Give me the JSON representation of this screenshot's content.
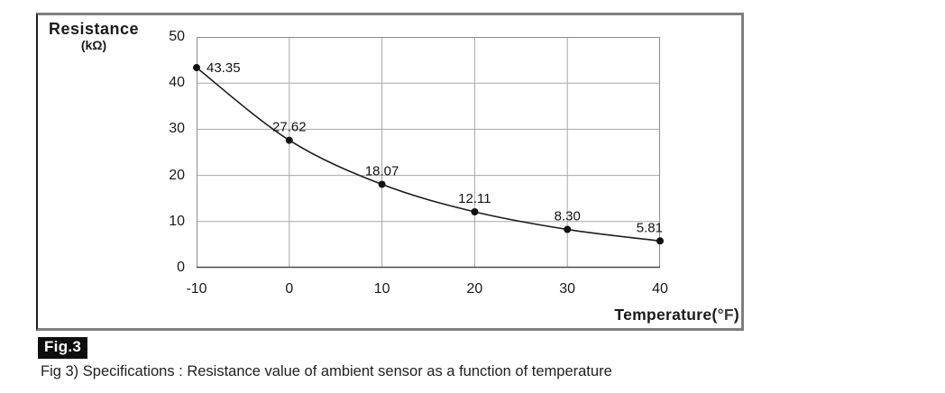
{
  "chart_data": {
    "type": "line",
    "x": [
      -10,
      0,
      10,
      20,
      30,
      40
    ],
    "values": [
      43.35,
      27.62,
      18.07,
      12.11,
      8.3,
      5.81
    ],
    "point_labels": [
      "43.35",
      "27.62",
      "18.07",
      "12.11",
      "8.30",
      "5.81"
    ],
    "xticks": [
      "-10",
      "0",
      "10",
      "20",
      "30",
      "40"
    ],
    "yticks": [
      "50",
      "40",
      "30",
      "20",
      "10",
      "0"
    ],
    "xlim": [
      -10,
      40
    ],
    "ylim": [
      0,
      50
    ],
    "grid": true,
    "legend": "none",
    "ylabel_line1": "Resistance",
    "ylabel_line2": "(kΩ)",
    "xlabel_text": "Temperature(",
    "xlabel_unit": "°F",
    "xlabel_close": ")",
    "line_color": "#1c1c1c",
    "marker_color": "#101010",
    "grid_color": "#a8a8a8",
    "border_color": "#8c8c8c",
    "axis_color": "#4a4a4a"
  },
  "badge": {
    "label": "Fig.3"
  },
  "caption": {
    "text": "Fig 3) Specifications : Resistance value of ambient sensor as a function of temperature"
  }
}
